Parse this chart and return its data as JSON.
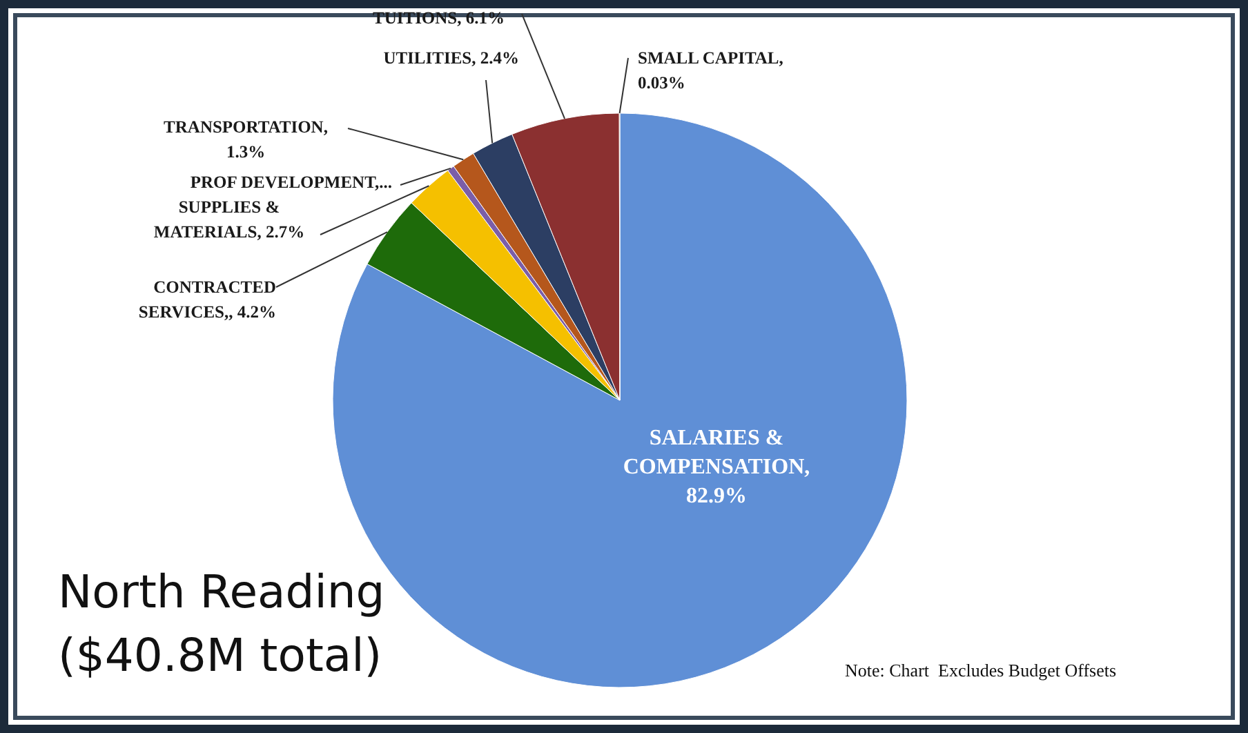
{
  "chart_data": {
    "type": "pie",
    "title": "North Reading",
    "subtitle": "($40.8M total)",
    "categories": [
      "SALARIES & COMPENSATION, 82.9%",
      "CONTRACTED SERVICES,, 4.2%",
      "SUPPLIES & MATERIALS, 2.7%",
      "PROF DEVELOPMENT,...",
      "TRANSPORTATION, 1.3%",
      "UTILITIES,  2.4%",
      "TUITIONS, 6.1%",
      "SMALL CAPITAL, 0.03%"
    ],
    "values": [
      82.9,
      4.2,
      2.7,
      0.4,
      1.3,
      2.4,
      6.1,
      0.03
    ],
    "colors": [
      "#5f8fd6",
      "#1e6b0a",
      "#f5c000",
      "#7b5ea8",
      "#b5571c",
      "#2c3e63",
      "#8b3030",
      "#4f6228"
    ],
    "annotations": [
      "Note: Chart  Excludes Budget Offsets"
    ]
  }
}
